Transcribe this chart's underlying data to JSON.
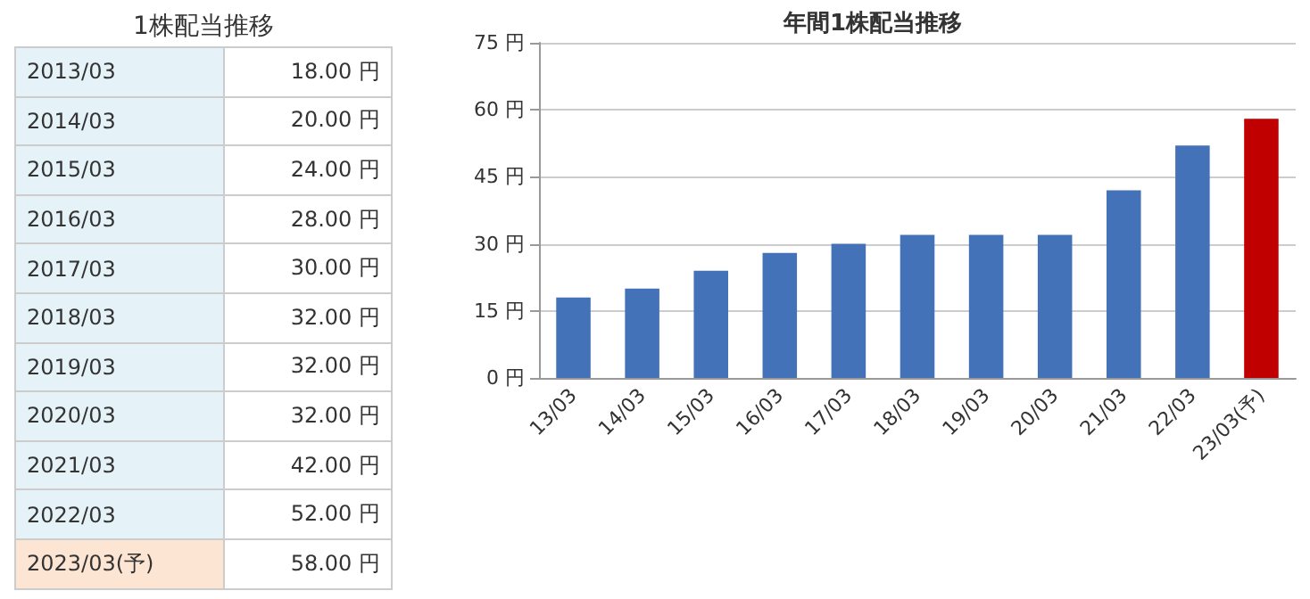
{
  "chart_data": [
    {
      "type": "other",
      "title": "1株配当推移",
      "categories": [
        "2013/03",
        "2014/03",
        "2015/03",
        "2016/03",
        "2017/03",
        "2018/03",
        "2019/03",
        "2020/03",
        "2021/03",
        "2022/03",
        "2023/03(予)"
      ],
      "value_labels": [
        "18.00 円",
        "20.00 円",
        "24.00 円",
        "28.00 円",
        "30.00 円",
        "32.00 円",
        "32.00 円",
        "32.00 円",
        "42.00 円",
        "52.00 円",
        "58.00 円"
      ],
      "colors": [
        "#e5f3f9",
        "#e5f3f9",
        "#e5f3f9",
        "#e5f3f9",
        "#e5f3f9",
        "#e5f3f9",
        "#e5f3f9",
        "#e5f3f9",
        "#e5f3f9",
        "#e5f3f9",
        "#fde5d3"
      ]
    },
    {
      "type": "bar",
      "title": "年間1株配当推移",
      "categories": [
        "13/03",
        "14/03",
        "15/03",
        "16/03",
        "17/03",
        "18/03",
        "19/03",
        "20/03",
        "21/03",
        "22/03",
        "23/03(予)"
      ],
      "values": [
        18,
        20,
        24,
        28,
        30,
        32,
        32,
        32,
        42,
        52,
        58
      ],
      "colors": [
        "#4472b8",
        "#4472b8",
        "#4472b8",
        "#4472b8",
        "#4472b8",
        "#4472b8",
        "#4472b8",
        "#4472b8",
        "#4472b8",
        "#4472b8",
        "#c00000"
      ],
      "ylim": [
        0,
        75
      ],
      "yticks": [
        {
          "value": 0,
          "label": "0 円"
        },
        {
          "value": 15,
          "label": "15 円"
        },
        {
          "value": 30,
          "label": "30 円"
        },
        {
          "value": 45,
          "label": "45 円"
        },
        {
          "value": 60,
          "label": "60 円"
        },
        {
          "value": 75,
          "label": "75 円"
        }
      ],
      "grid": true
    }
  ]
}
